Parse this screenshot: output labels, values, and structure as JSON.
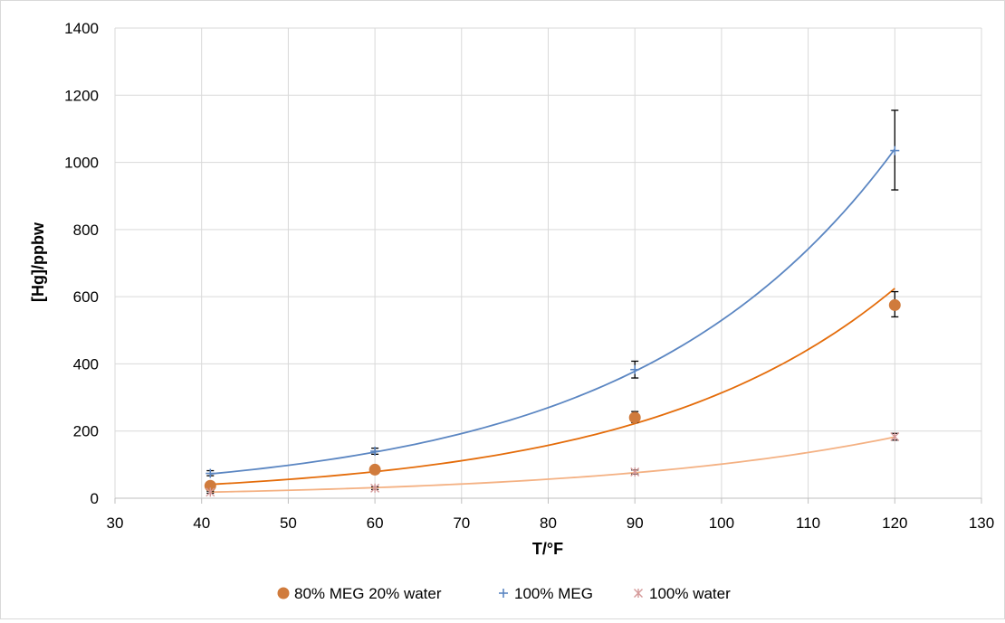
{
  "chart_data": {
    "type": "scatter",
    "title": "",
    "xlabel": "T/°F",
    "ylabel": "[Hg]/ppbw",
    "xlim": [
      30,
      130
    ],
    "ylim": [
      0,
      1400
    ],
    "xticks": [
      30,
      40,
      50,
      60,
      70,
      80,
      90,
      100,
      110,
      120,
      130
    ],
    "yticks": [
      0,
      200,
      400,
      600,
      800,
      1000,
      1200,
      1400
    ],
    "xtick_labels": [
      "30",
      "40",
      "50",
      "60",
      "70",
      "80",
      "90",
      "100",
      "110",
      "120",
      "130"
    ],
    "ytick_labels": [
      "0",
      "200",
      "400",
      "600",
      "800",
      "1000",
      "1200",
      "1400"
    ],
    "grid": true,
    "legend_position": "bottom",
    "series": [
      {
        "name": "80% MEG 20% water",
        "marker": "circle",
        "color": "#d07b3c",
        "trend_color": "#e46c0a",
        "points": [
          {
            "x": 41,
            "y": 37,
            "err_low": 30,
            "err_high": 45
          },
          {
            "x": 60,
            "y": 85,
            "err_low": 80,
            "err_high": 92
          },
          {
            "x": 90,
            "y": 240,
            "err_low": 225,
            "err_high": 258
          },
          {
            "x": 120,
            "y": 575,
            "err_low": 540,
            "err_high": 615
          }
        ],
        "trend": {
          "type": "exponential",
          "points": [
            [
              41,
              40
            ],
            [
              60,
              82
            ],
            [
              90,
              222
            ],
            [
              120,
              620
            ]
          ]
        }
      },
      {
        "name": "100% MEG",
        "marker": "plus",
        "color": "#5b86c2",
        "trend_color": "#5b86c2",
        "points": [
          {
            "x": 41,
            "y": 74,
            "err_low": 67,
            "err_high": 82
          },
          {
            "x": 60,
            "y": 140,
            "err_low": 131,
            "err_high": 149
          },
          {
            "x": 90,
            "y": 383,
            "err_low": 358,
            "err_high": 408
          },
          {
            "x": 120,
            "y": 1035,
            "err_low": 918,
            "err_high": 1155
          }
        ],
        "trend": {
          "type": "exponential",
          "points": [
            [
              41,
              72
            ],
            [
              60,
              138
            ],
            [
              90,
              380
            ],
            [
              120,
              1035
            ]
          ]
        }
      },
      {
        "name": "100% water",
        "marker": "asterisk",
        "color": "#d59a9a",
        "trend_color": "#f4b183",
        "points": [
          {
            "x": 41,
            "y": 18,
            "err_low": 15,
            "err_high": 21
          },
          {
            "x": 60,
            "y": 30,
            "err_low": 26,
            "err_high": 34
          },
          {
            "x": 90,
            "y": 78,
            "err_low": 72,
            "err_high": 84
          },
          {
            "x": 120,
            "y": 183,
            "err_low": 173,
            "err_high": 193
          }
        ],
        "trend": {
          "type": "exponential",
          "points": [
            [
              41,
              18
            ],
            [
              60,
              32
            ],
            [
              90,
              75
            ],
            [
              120,
              183
            ]
          ]
        }
      }
    ]
  }
}
